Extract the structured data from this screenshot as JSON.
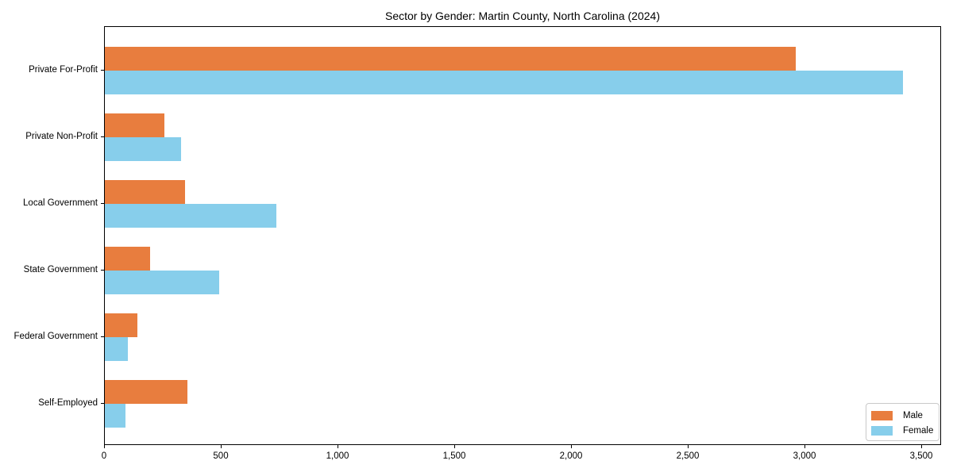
{
  "chart_data": {
    "type": "bar",
    "orientation": "horizontal",
    "title": "Sector by Gender: Martin County, North Carolina (2024)",
    "categories": [
      "Private For-Profit",
      "Private Non-Profit",
      "Local Government",
      "State Government",
      "Federal Government",
      "Self-Employed"
    ],
    "series": [
      {
        "name": "Male",
        "color": "#E87D3E",
        "values": [
          2960,
          255,
          345,
          195,
          140,
          355
        ]
      },
      {
        "name": "Female",
        "color": "#87CEEB",
        "values": [
          3420,
          325,
          735,
          490,
          100,
          90
        ]
      }
    ],
    "xlabel": "",
    "ylabel": "",
    "xlim": [
      0,
      3585
    ],
    "x_ticks": [
      0,
      500,
      1000,
      1500,
      2000,
      2500,
      3000,
      3500
    ],
    "x_tick_labels": [
      "0",
      "500",
      "1,000",
      "1,500",
      "2,000",
      "2,500",
      "3,000",
      "3,500"
    ],
    "grid": false,
    "legend_position": "lower right",
    "axis_color": "#000000",
    "legend_border_color": "#c9c9c9"
  }
}
